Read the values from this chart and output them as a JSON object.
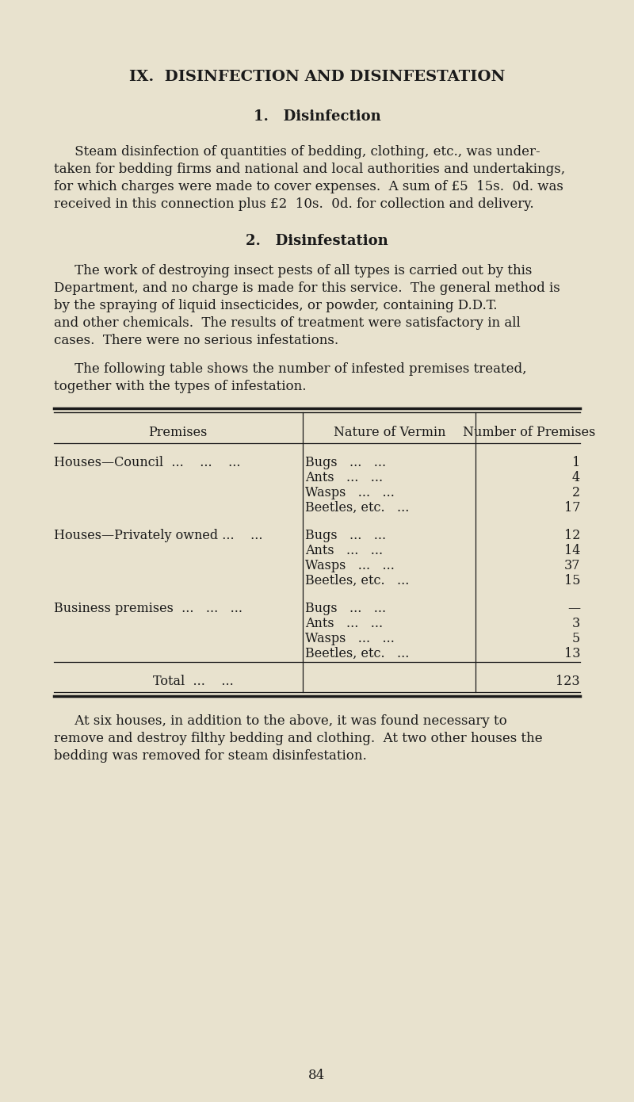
{
  "bg_color": "#e8e2ce",
  "text_color": "#1a1a1a",
  "title": "IX.  DISINFECTION AND DISINFESTATION",
  "section1_heading": "1.   Disinfection",
  "section1_lines": [
    "     Steam disinfection of quantities of bedding, clothing, etc., was under-",
    "taken for bedding firms and national and local authorities and undertakings,",
    "for which charges were made to cover expenses.  A sum of £5  15s.  0d. was",
    "received in this connection plus £2  10s.  0d. for collection and delivery."
  ],
  "section2_heading": "2.   Disinfestation",
  "section2_lines1": [
    "     The work of destroying insect pests of all types is carried out by this",
    "Department, and no charge is made for this service.  The general method is",
    "by the spraying of liquid insecticides, or powder, containing D.D.T.",
    "and other chemicals.  The results of treatment were satisfactory in all",
    "cases.  There were no serious infestations."
  ],
  "section2_lines2": [
    "     The following table shows the number of infested premises treated,",
    "together with the types of infestation."
  ],
  "col1_header": "Premises",
  "col2_header": "Nature of Vermin",
  "col3_header": "Number of Premises",
  "group_labels": [
    "Houses—Council  ...    ...    ...",
    "Houses—Privately owned ...    ...",
    "Business premises  ...   ...   ..."
  ],
  "vermin_labels": [
    [
      "Bugs   ...   ...",
      "Ants   ...   ...",
      "Wasps   ...   ...",
      "Beetles, etc.   ..."
    ],
    [
      "Bugs   ...   ...",
      "Ants   ...   ...",
      "Wasps   ...   ...",
      "Beetles, etc.   ..."
    ],
    [
      "Bugs   ...   ...",
      "Ants   ...   ...",
      "Wasps   ...   ...",
      "Beetles, etc.   ..."
    ]
  ],
  "numbers": [
    [
      "1",
      "4",
      "2",
      "17"
    ],
    [
      "12",
      "14",
      "37",
      "15"
    ],
    [
      "—",
      "3",
      "5",
      "13"
    ]
  ],
  "total_label": "Total  ...    ...",
  "total_value": "123",
  "footer_lines": [
    "     At six houses, in addition to the above, it was found necessary to",
    "remove and destroy filthy bedding and clothing.  At two other houses the",
    "bedding was removed for steam disinfestation."
  ],
  "page_number": "84",
  "font_family": "DejaVu Serif",
  "title_fs": 14,
  "heading_fs": 13,
  "body_fs": 12,
  "table_fs": 11.5
}
